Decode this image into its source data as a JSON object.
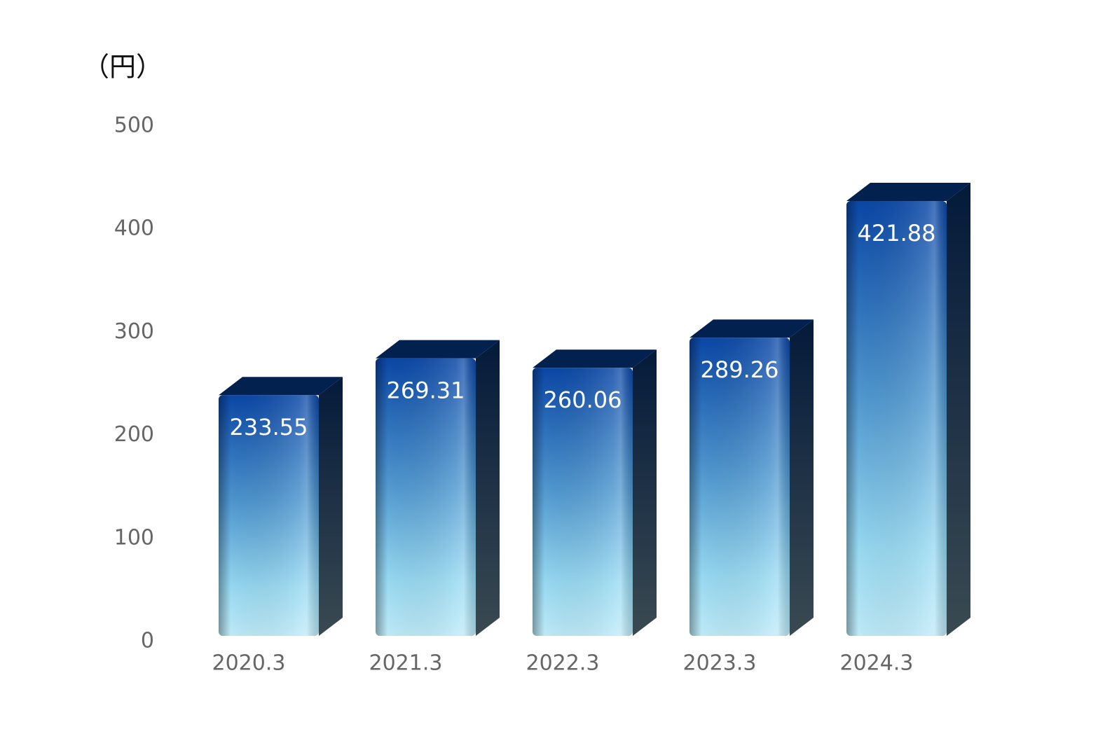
{
  "chart_data": {
    "type": "bar3d",
    "y_label": "（円）",
    "categories": [
      "2020.3",
      "2021.3",
      "2022.3",
      "2023.3",
      "2024.3"
    ],
    "values": [
      233.55,
      269.31,
      260.06,
      289.26,
      421.88
    ],
    "ylim": [
      0,
      500
    ],
    "yticks": [
      0,
      100,
      200,
      300,
      400,
      500
    ],
    "grid": false
  }
}
